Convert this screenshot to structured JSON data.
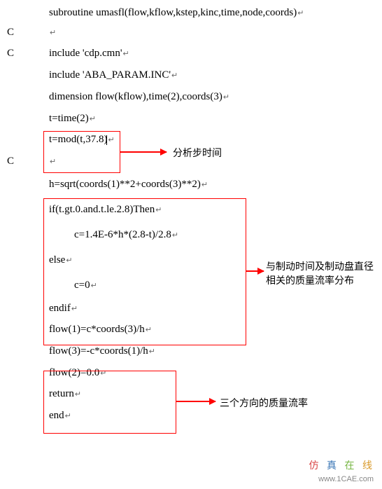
{
  "code": {
    "lines": [
      {
        "c": "",
        "text": "subroutine umasfl(flow,kflow,kstep,kinc,time,node,coords)",
        "indent": false
      },
      {
        "c": "C",
        "text": "",
        "indent": false
      },
      {
        "c": "C",
        "text": "include 'cdp.cmn'",
        "indent": false
      },
      {
        "c": "",
        "text": "include 'ABA_PARAM.INC'",
        "indent": false
      },
      {
        "c": "",
        "text": "dimension flow(kflow),time(2),coords(3)",
        "indent": false
      },
      {
        "c": "",
        "text": "t=time(2)",
        "indent": false
      },
      {
        "c": "",
        "text": "t=mod(t,37.8)",
        "indent": false,
        "cursor": true
      },
      {
        "c": "C",
        "text": "",
        "indent": false
      },
      {
        "c": "",
        "text": "h=sqrt(coords(1)**2+coords(3)**2)",
        "indent": false
      },
      {
        "c": "",
        "text": "if(t.gt.0.and.t.le.2.8)Then",
        "indent": false
      },
      {
        "c": "",
        "text": "c=1.4E-6*h*(2.8-t)/2.8",
        "indent": true
      },
      {
        "c": "",
        "text": "else",
        "indent": false
      },
      {
        "c": "",
        "text": "c=0",
        "indent": true
      },
      {
        "c": "",
        "text": "endif",
        "indent": false
      },
      {
        "c": "",
        "text": "flow(1)=c*coords(3)/h",
        "indent": false
      },
      {
        "c": "",
        "text": "flow(3)=-c*coords(1)/h",
        "indent": false
      },
      {
        "c": "",
        "text": "flow(2)=0.0",
        "indent": false
      },
      {
        "c": "",
        "text": "return",
        "indent": false
      },
      {
        "c": "",
        "text": "end",
        "indent": false
      }
    ],
    "special_heights": {
      "0": 26,
      "1": 30,
      "5": 30,
      "7": 30,
      "8": 36,
      "9": 36,
      "10": 36,
      "11": 36,
      "12": 36,
      "13": 30,
      "16": 30
    }
  },
  "annotations": {
    "ann1": "分析步时间",
    "ann2_line1": "与制动时间及制动盘直径",
    "ann2_line2": "相关的质量流率分布",
    "ann3": "三个方向的质量流率"
  },
  "boxes": {
    "box1_color": "#ff0000",
    "box2_color": "#ff0000",
    "box3_color": "#ff0000"
  },
  "arrows": {
    "color": "#ff0000"
  },
  "watermark": {
    "chars": [
      "仿",
      "真",
      "在",
      "线"
    ],
    "url": "www.1CAE.com"
  },
  "styling": {
    "bg_color": "#ffffff",
    "text_color": "#000000",
    "font_size_code": 15,
    "font_size_annotation": 14,
    "font_family_code": "Times New Roman",
    "font_family_annotation": "SimSun",
    "return_char": "↵",
    "watermark_colors": [
      "#d94545",
      "#3a76b5",
      "#76b542",
      "#d99a2a"
    ]
  }
}
